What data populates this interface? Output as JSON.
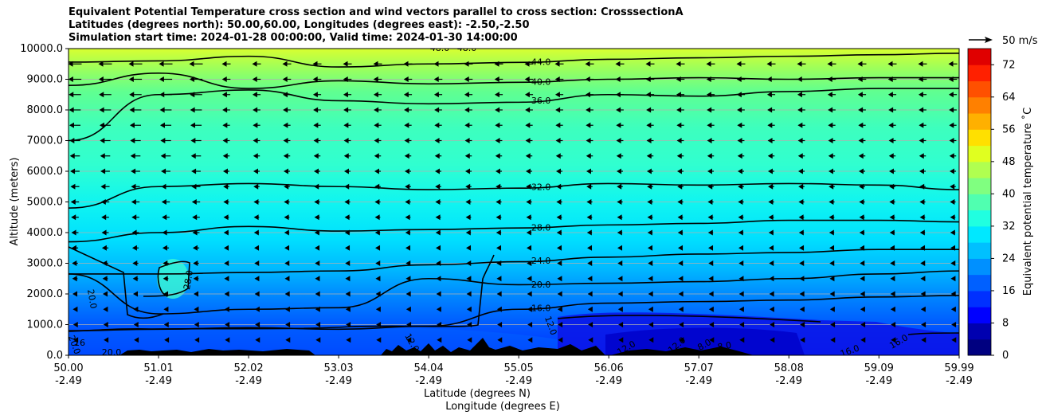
{
  "chart_data": {
    "type": "contour",
    "title_lines": [
      "Equivalent Potential Temperature cross section and wind vectors parallel to cross section: CrosssectionA",
      "Latitudes (degrees north): 50.00,60.00, Longitudes (degrees east): -2.50,-2.50",
      "Simulation start time: 2024-01-28 00:00:00, Valid time: 2024-01-30 14:00:00"
    ],
    "ylabel": "Altitude (meters)",
    "xlabel_lines": [
      "Latitude (degrees N)",
      "Longitude (degrees E)"
    ],
    "x_ticks": [
      {
        "lat": "50.00",
        "lon": "-2.49"
      },
      {
        "lat": "51.01",
        "lon": "-2.49"
      },
      {
        "lat": "52.02",
        "lon": "-2.49"
      },
      {
        "lat": "53.03",
        "lon": "-2.49"
      },
      {
        "lat": "54.04",
        "lon": "-2.49"
      },
      {
        "lat": "55.05",
        "lon": "-2.49"
      },
      {
        "lat": "56.06",
        "lon": "-2.49"
      },
      {
        "lat": "57.07",
        "lon": "-2.49"
      },
      {
        "lat": "58.08",
        "lon": "-2.49"
      },
      {
        "lat": "59.09",
        "lon": "-2.49"
      },
      {
        "lat": "59.99",
        "lon": "-2.49"
      }
    ],
    "xlim": [
      50.0,
      59.99
    ],
    "y_ticks": [
      "0.0",
      "1000.0",
      "2000.0",
      "3000.0",
      "4000.0",
      "5000.0",
      "6000.0",
      "7000.0",
      "8000.0",
      "9000.0",
      "10000.0"
    ],
    "ylim": [
      0,
      10000
    ],
    "grid": "horizontal",
    "colorbar": {
      "label": "Equivalent potential temperature ˚C",
      "ticks": [
        "0",
        "8",
        "16",
        "24",
        "32",
        "40",
        "48",
        "56",
        "64",
        "72"
      ],
      "range": [
        0,
        76
      ],
      "colormap": "jet"
    },
    "quiver_key": "50 m/s",
    "contour_lines": [
      {
        "level": "44.0",
        "label_lat": 55.3,
        "alt": [
          9560,
          9600,
          9750,
          9400,
          9500,
          9550,
          9650,
          9700,
          9750,
          9800,
          9850
        ]
      },
      {
        "level": "40.0",
        "label_lat": 55.3,
        "alt": [
          8800,
          9200,
          8700,
          8950,
          8850,
          8900,
          9000,
          9050,
          9000,
          9050,
          9050
        ]
      },
      {
        "level": "36.0",
        "label_lat": 55.3,
        "alt": [
          7000,
          8500,
          8650,
          8300,
          8200,
          8250,
          8500,
          8450,
          8600,
          8700,
          8700
        ]
      },
      {
        "level": "32.0",
        "label_lat": 55.3,
        "alt": [
          4800,
          5500,
          5600,
          5500,
          5400,
          5450,
          5600,
          5550,
          5600,
          5550,
          5400
        ]
      },
      {
        "level": "28.0",
        "label_lat": 55.3,
        "alt": [
          3700,
          4000,
          4200,
          4050,
          4100,
          4150,
          4250,
          4300,
          4400,
          4400,
          4350
        ]
      },
      {
        "level": "24.0",
        "label_lat": 55.3,
        "alt": [
          2650,
          2650,
          2700,
          2750,
          2950,
          3050,
          3200,
          3300,
          3350,
          3450,
          3450
        ]
      },
      {
        "level": "20.0",
        "label_lat": 55.3,
        "alt": [
          2650,
          1350,
          1500,
          1550,
          2500,
          2300,
          2350,
          2400,
          2500,
          2650,
          2750
        ]
      },
      {
        "level": "16.0",
        "label_lat": 55.3,
        "alt": [
          800,
          850,
          900,
          850,
          950,
          1500,
          1700,
          1750,
          1800,
          1900,
          1950
        ]
      }
    ],
    "extra_contour_labels": [
      "48.0",
      "48.0",
      "28.0",
      "20.0",
      "20.0",
      "20.0",
      "16",
      "12.0",
      "12.0",
      "12.0",
      "12.0",
      "8.0",
      "8.0",
      "16.0",
      "16.0"
    ]
  }
}
